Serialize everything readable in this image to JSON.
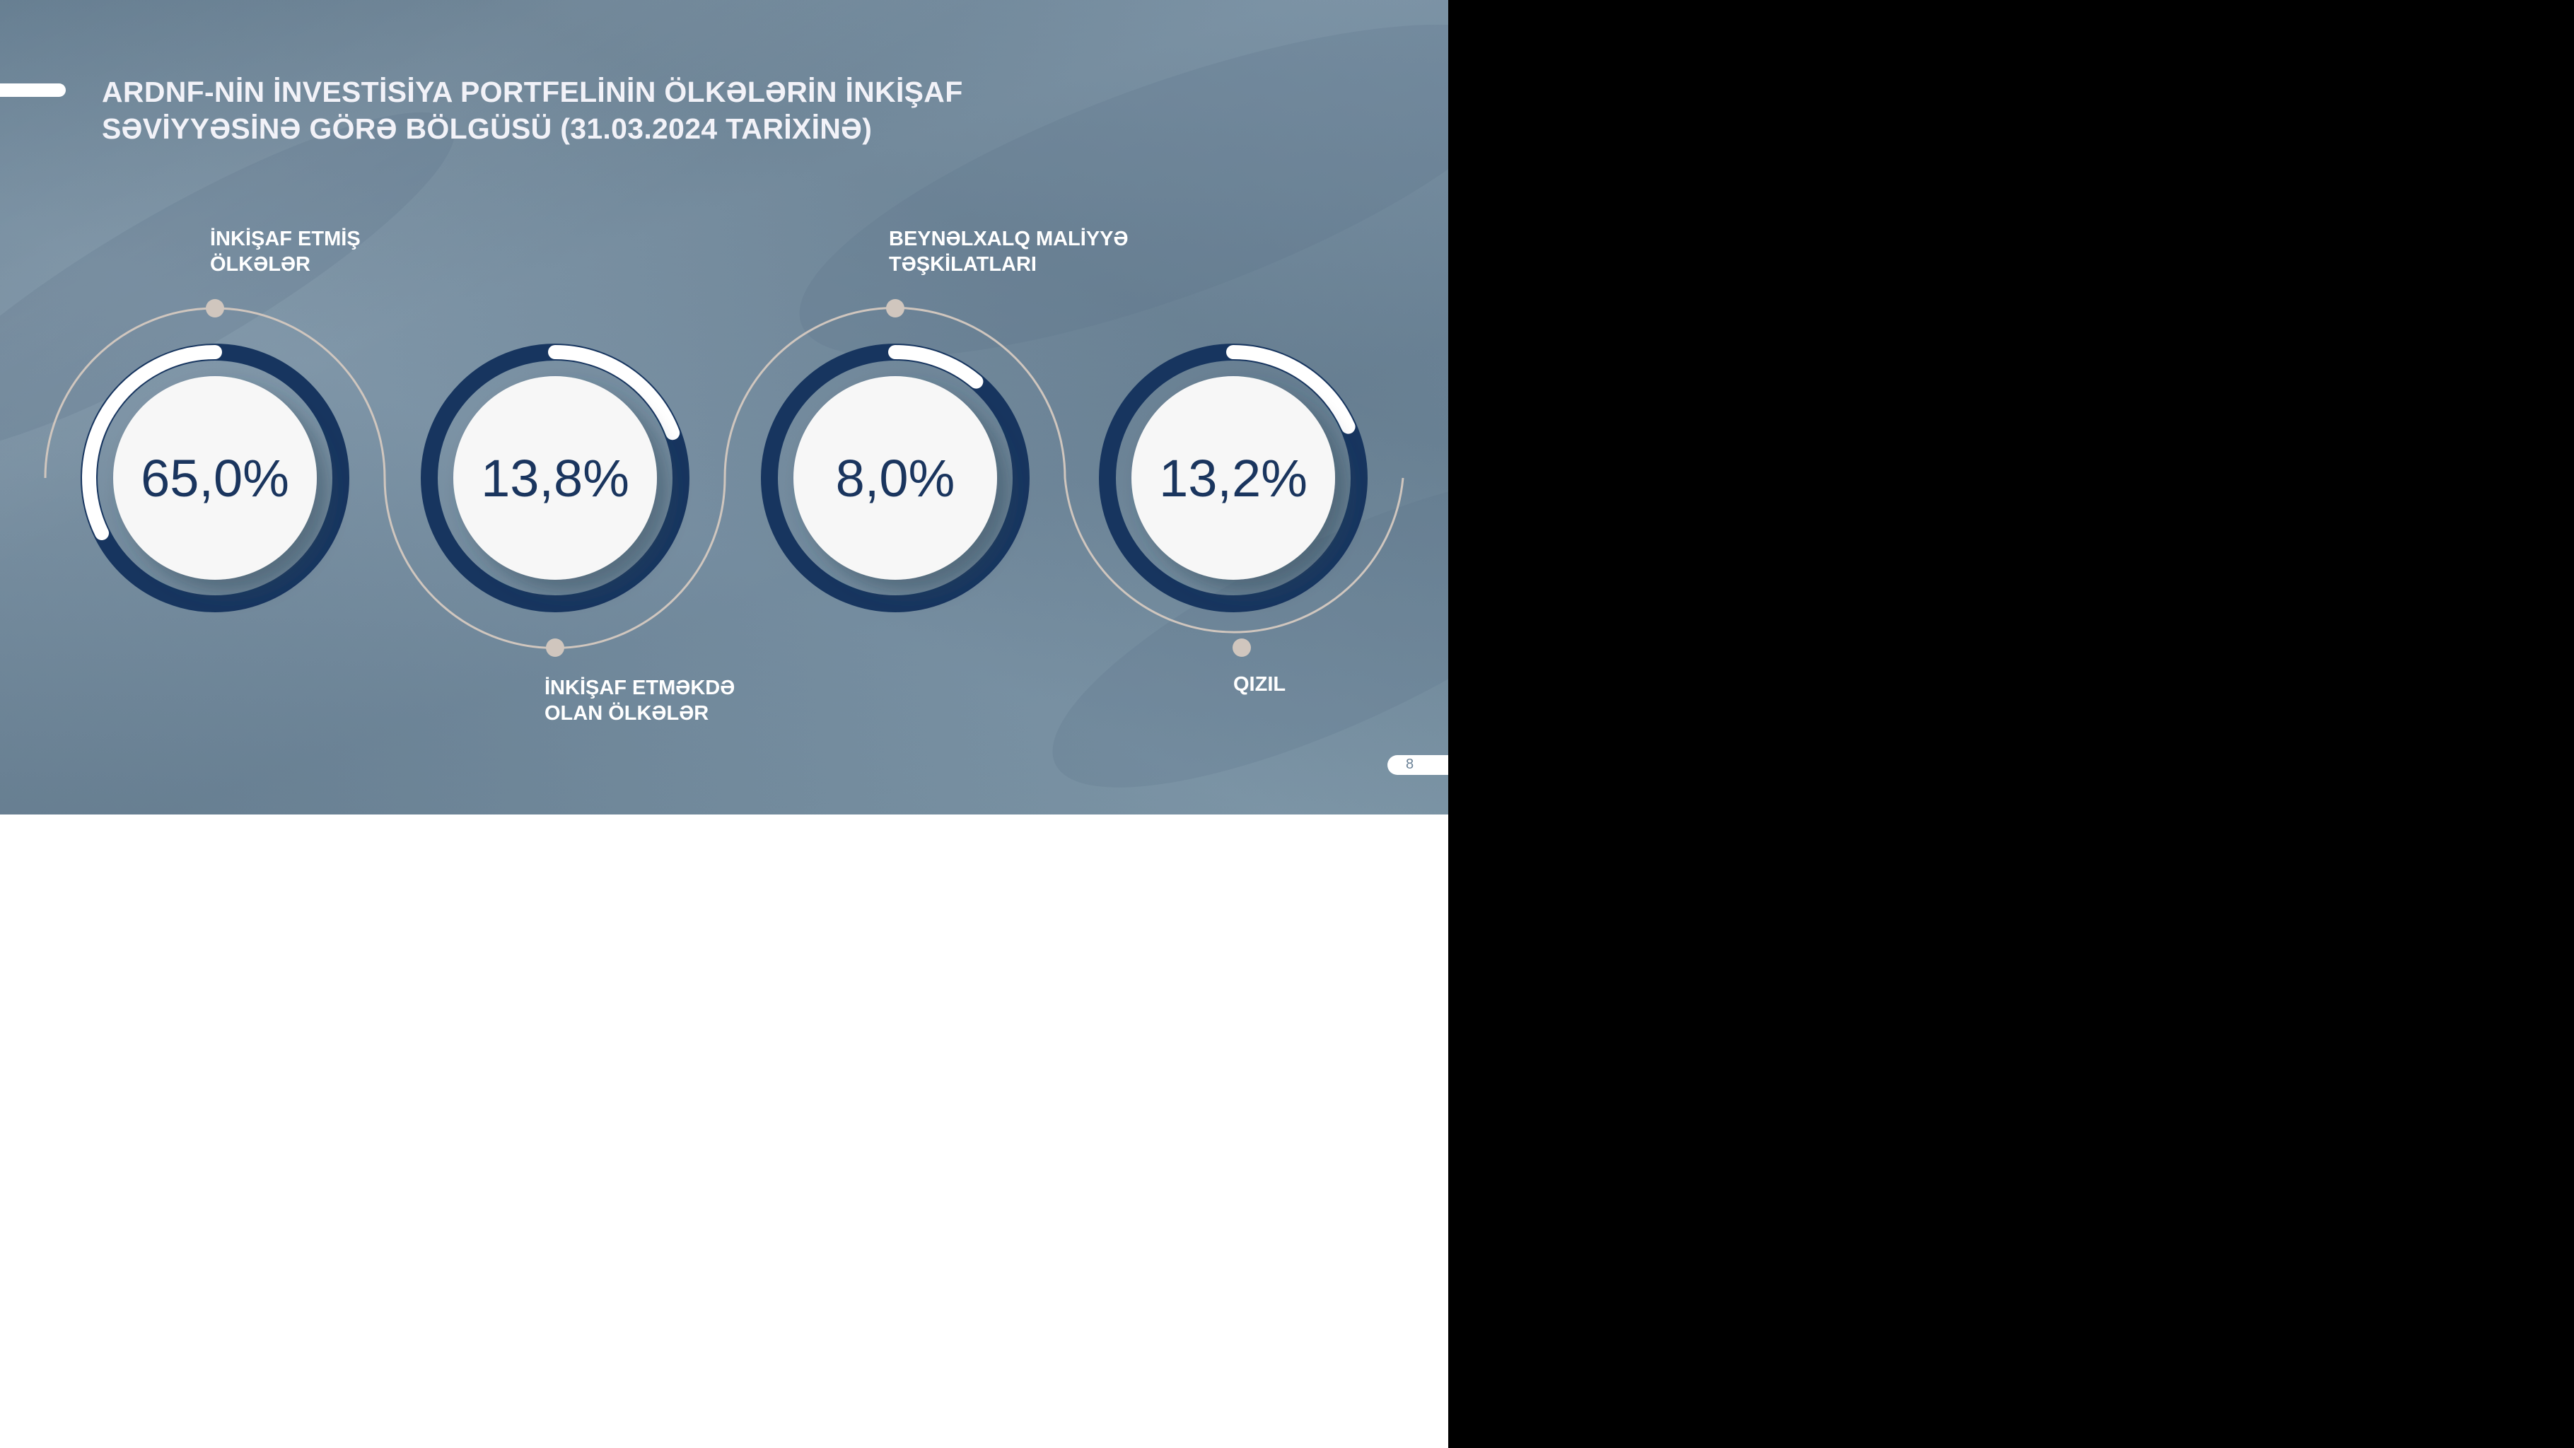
{
  "slide": {
    "title_line1": "ARDNF-NİN İNVESTİSİYA PORTFELİNİN ÖLKƏLƏRİN İNKİŞAF",
    "title_line2": "SƏVİYYƏSİNƏ GÖRƏ BÖLGÜSÜ (31.03.2024 TARİXİNƏ)",
    "page_number": "8"
  },
  "chart_data": {
    "type": "donut",
    "title": "ARDNF-NİN İNVESTİSİYA PORTFELİNİN ÖLKƏLƏRİN İNKİŞAF SƏVİYYƏSİNƏ GÖRƏ BÖLGÜSÜ (31.03.2024 TARİXİNƏ)",
    "categories": [
      {
        "line1": "İNKİŞAF ETMİŞ",
        "line2": "ÖLKƏLƏR"
      },
      {
        "line1": "İNKİŞAF ETMƏKDƏ",
        "line2": "OLAN ÖLKƏLƏR"
      },
      {
        "line1": "BEYNƏLXALQ MALİYYƏ",
        "line2": "TƏŞKİLATLARI"
      },
      {
        "line1": "QIZIL",
        "line2": ""
      }
    ],
    "values": [
      65.0,
      13.8,
      8.0,
      13.2
    ],
    "value_labels": [
      "65,0%",
      "13,8%",
      "8,0%",
      "13,2%"
    ],
    "colors": {
      "ring": "#17355f",
      "highlight": "#ffffff",
      "center": "#f7f7f7",
      "text": "#1a355e",
      "connector": "#d0c6be"
    }
  }
}
